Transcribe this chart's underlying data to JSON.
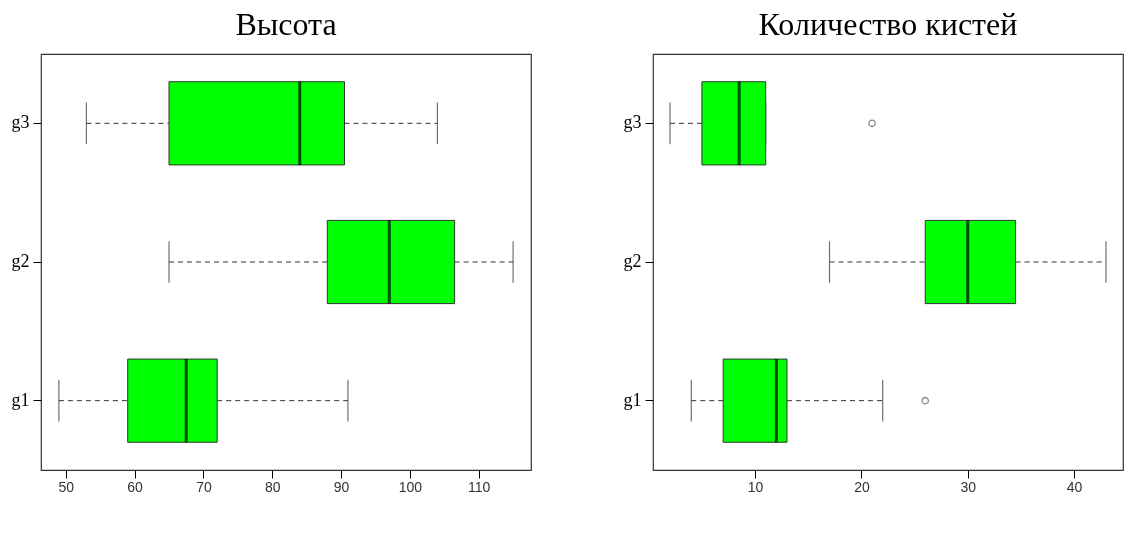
{
  "chart_data": [
    {
      "type": "box",
      "title": "Высота",
      "orientation": "horizontal",
      "categories": [
        "g3",
        "g2",
        "g1"
      ],
      "color": "#00ff00",
      "grid": false,
      "xlim": [
        46.4,
        117.6
      ],
      "xticks": [
        50,
        60,
        70,
        80,
        90,
        100,
        110
      ],
      "boxes": [
        {
          "low": 53,
          "q1": 65,
          "median": 84,
          "q3": 90.5,
          "high": 104
        },
        {
          "low": 65,
          "q1": 88,
          "median": 97,
          "q3": 106.5,
          "high": 115
        },
        {
          "low": 49,
          "q1": 59,
          "median": 67.5,
          "q3": 72,
          "high": 91
        }
      ]
    },
    {
      "type": "box",
      "title": "Количество кистей",
      "orientation": "horizontal",
      "categories": [
        "g3",
        "g2",
        "g1"
      ],
      "color": "#00ff00",
      "grid": false,
      "xlim": [
        0.4,
        44.6
      ],
      "xticks": [
        10,
        20,
        30,
        40
      ],
      "boxes": [
        {
          "low": 2,
          "q1": 5,
          "median": 8.5,
          "q3": 11,
          "high": 11,
          "outliers": [
            21
          ]
        },
        {
          "low": 17,
          "q1": 26,
          "median": 30,
          "q3": 34.5,
          "high": 43
        },
        {
          "low": 4,
          "q1": 7,
          "median": 12,
          "q3": 13,
          "high": 22,
          "outliers": [
            26
          ]
        }
      ]
    }
  ]
}
